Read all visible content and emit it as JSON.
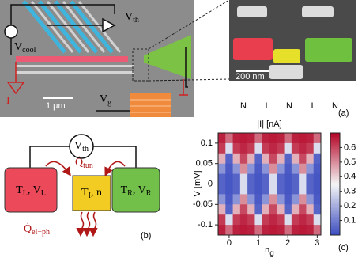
{
  "panel_a": {
    "sem": {
      "v_th": [
        "V",
        "th"
      ],
      "v_cool": [
        "V",
        "cool"
      ],
      "current": "I",
      "scale_bar": "1 μm",
      "v_g": [
        "V",
        "g"
      ]
    },
    "inset": {
      "scale_bar": "200 nm"
    },
    "junction_labels": [
      "N",
      "I",
      "N",
      "I",
      "N"
    ],
    "label": "(a)"
  },
  "panel_b": {
    "v_th": [
      "V",
      "th"
    ],
    "q_tun": [
      "Q̇",
      "tun"
    ],
    "left_island": [
      "T",
      "L",
      ", V",
      "L"
    ],
    "middle_island": [
      "T",
      "I",
      ", n"
    ],
    "right_island": [
      "T",
      "R",
      ", V",
      "R"
    ],
    "q_el_ph": [
      "Q̇",
      "el−ph"
    ],
    "label": "(b)"
  },
  "chart_data": {
    "type": "heatmap",
    "title": "|I| [nA]",
    "ylabel": "V [mV]",
    "xlabel": [
      "n",
      "g"
    ],
    "x": [
      -0.25,
      0,
      0.25,
      0.5,
      0.75,
      1,
      1.25,
      1.5,
      1.75,
      2,
      2.25,
      2.5,
      2.75,
      3
    ],
    "y": [
      0.1125,
      0.0875,
      0.0625,
      0.0375,
      0.0125,
      -0.0125,
      -0.0375,
      -0.0625,
      -0.0875,
      -0.1125
    ],
    "z": [
      [
        0.66,
        0.55,
        0.66,
        0.67,
        0.66,
        0.55,
        0.66,
        0.67,
        0.66,
        0.55,
        0.66,
        0.67,
        0.66,
        0.55
      ],
      [
        0.62,
        0.3,
        0.62,
        0.65,
        0.62,
        0.3,
        0.62,
        0.65,
        0.62,
        0.3,
        0.62,
        0.65,
        0.62,
        0.3
      ],
      [
        0.45,
        0.05,
        0.45,
        0.6,
        0.45,
        0.05,
        0.45,
        0.6,
        0.45,
        0.05,
        0.45,
        0.6,
        0.45,
        0.05
      ],
      [
        0.15,
        0.03,
        0.15,
        0.5,
        0.15,
        0.03,
        0.15,
        0.5,
        0.15,
        0.03,
        0.15,
        0.5,
        0.15,
        0.03
      ],
      [
        0.05,
        0.02,
        0.05,
        0.3,
        0.05,
        0.02,
        0.05,
        0.3,
        0.05,
        0.02,
        0.05,
        0.3,
        0.05,
        0.02
      ],
      [
        0.05,
        0.02,
        0.05,
        0.3,
        0.05,
        0.02,
        0.05,
        0.3,
        0.05,
        0.02,
        0.05,
        0.3,
        0.05,
        0.02
      ],
      [
        0.15,
        0.03,
        0.15,
        0.5,
        0.15,
        0.03,
        0.15,
        0.5,
        0.15,
        0.03,
        0.15,
        0.5,
        0.15,
        0.03
      ],
      [
        0.45,
        0.05,
        0.45,
        0.6,
        0.45,
        0.05,
        0.45,
        0.6,
        0.45,
        0.05,
        0.45,
        0.6,
        0.45,
        0.05
      ],
      [
        0.62,
        0.3,
        0.62,
        0.65,
        0.62,
        0.3,
        0.62,
        0.65,
        0.62,
        0.3,
        0.62,
        0.65,
        0.62,
        0.3
      ],
      [
        0.66,
        0.55,
        0.66,
        0.67,
        0.66,
        0.55,
        0.66,
        0.67,
        0.66,
        0.55,
        0.66,
        0.67,
        0.66,
        0.55
      ]
    ],
    "xlim": [
      -0.375,
      3.125
    ],
    "ylim": [
      -0.125,
      0.125
    ],
    "xticks": [
      0,
      1,
      2,
      3
    ],
    "yticks": [
      0.1,
      0.05,
      0,
      -0.05,
      -0.1
    ],
    "clim": [
      0,
      0.7
    ],
    "cticks": [
      0.1,
      0.2,
      0.3,
      0.4,
      0.5,
      0.6
    ],
    "colormap": [
      "#3b4cc0",
      "#f5f5f5",
      "#b40426"
    ],
    "label": "(c)"
  }
}
